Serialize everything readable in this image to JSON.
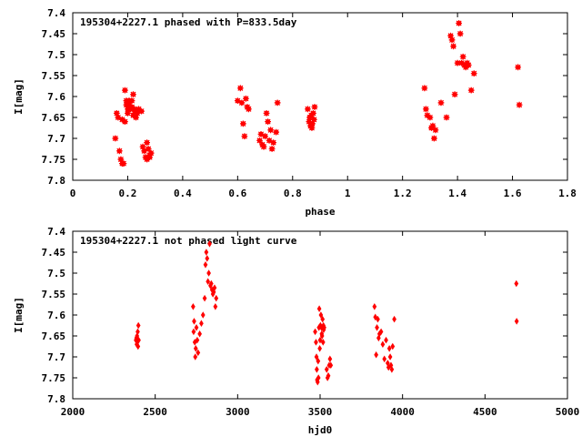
{
  "chart_data": [
    {
      "type": "scatter",
      "title": "195304+2227.1 phased with P=833.5day",
      "xlabel": "phase",
      "ylabel": "I[mag]",
      "xlim": [
        0,
        1.8
      ],
      "ylim": [
        7.8,
        7.4
      ],
      "y_inverted": true,
      "xticks": [
        "0",
        "0.2",
        "0.4",
        "0.6",
        "0.8",
        "1",
        "1.2",
        "1.4",
        "1.6",
        "1.8"
      ],
      "yticks": [
        "7.4",
        "7.45",
        "7.5",
        "7.55",
        "7.6",
        "7.65",
        "7.7",
        "7.75",
        "7.8"
      ],
      "grid": false,
      "marker_color": "#ff0000",
      "marker": "filled-circle-cross",
      "series": [
        {
          "x": [
            0.155,
            0.16,
            0.165,
            0.17,
            0.175,
            0.18,
            0.185,
            0.19,
            0.195,
            0.2,
            0.2,
            0.205,
            0.21,
            0.215,
            0.22,
            0.22,
            0.225,
            0.23,
            0.235,
            0.24,
            0.25,
            0.255,
            0.26,
            0.265,
            0.27,
            0.27,
            0.275,
            0.28,
            0.28,
            0.285,
            0.195,
            0.205,
            0.215,
            0.225,
            0.18,
            0.19,
            0.6,
            0.61,
            0.615,
            0.62,
            0.625,
            0.63,
            0.635,
            0.64,
            0.68,
            0.685,
            0.69,
            0.695,
            0.7,
            0.705,
            0.71,
            0.715,
            0.72,
            0.725,
            0.73,
            0.74,
            0.745,
            0.855,
            0.86,
            0.862,
            0.865,
            0.868,
            0.87,
            0.872,
            0.875,
            0.878,
            0.88,
            1.28,
            1.285,
            1.29,
            1.3,
            1.305,
            1.31,
            1.315,
            1.32,
            1.34,
            1.36,
            1.375,
            1.38,
            1.385,
            1.39,
            1.4,
            1.405,
            1.41,
            1.415,
            1.42,
            1.425,
            1.43,
            1.435,
            1.44,
            1.45,
            1.46,
            1.62,
            1.625
          ],
          "y": [
            7.7,
            7.64,
            7.65,
            7.73,
            7.75,
            7.76,
            7.76,
            7.585,
            7.61,
            7.63,
            7.64,
            7.62,
            7.63,
            7.61,
            7.595,
            7.645,
            7.63,
            7.65,
            7.64,
            7.63,
            7.635,
            7.72,
            7.73,
            7.745,
            7.75,
            7.71,
            7.725,
            7.74,
            7.745,
            7.735,
            7.62,
            7.61,
            7.625,
            7.635,
            7.655,
            7.66,
            7.61,
            7.58,
            7.615,
            7.665,
            7.695,
            7.605,
            7.625,
            7.63,
            7.705,
            7.69,
            7.715,
            7.72,
            7.695,
            7.64,
            7.66,
            7.705,
            7.68,
            7.725,
            7.71,
            7.685,
            7.615,
            7.63,
            7.66,
            7.65,
            7.67,
            7.645,
            7.675,
            7.665,
            7.64,
            7.655,
            7.625,
            7.58,
            7.63,
            7.645,
            7.65,
            7.675,
            7.67,
            7.7,
            7.68,
            7.615,
            7.65,
            7.455,
            7.465,
            7.48,
            7.595,
            7.52,
            7.425,
            7.45,
            7.52,
            7.505,
            7.525,
            7.53,
            7.52,
            7.525,
            7.585,
            7.545,
            7.53,
            7.62
          ]
        }
      ]
    },
    {
      "type": "scatter",
      "title": "195304+2227.1 not phased light curve",
      "xlabel": "hjd0",
      "ylabel": "I[mag]",
      "xlim": [
        2000,
        5000
      ],
      "ylim": [
        7.8,
        7.4
      ],
      "y_inverted": true,
      "xticks": [
        "2000",
        "2500",
        "3000",
        "3500",
        "4000",
        "4500",
        "5000"
      ],
      "yticks": [
        "7.4",
        "7.45",
        "7.5",
        "7.55",
        "7.6",
        "7.65",
        "7.7",
        "7.75",
        "7.8"
      ],
      "grid": false,
      "marker_color": "#ff0000",
      "marker": "diamond",
      "series": [
        {
          "x": [
            2383,
            2386,
            2388,
            2390,
            2392,
            2394,
            2396,
            2398,
            2400,
            2730,
            2733,
            2736,
            2740,
            2743,
            2746,
            2750,
            2755,
            2760,
            2770,
            2780,
            2790,
            2800,
            2805,
            2810,
            2815,
            2820,
            2825,
            2830,
            2835,
            2840,
            2845,
            2850,
            2855,
            2860,
            2865,
            2870,
            3470,
            3475,
            3478,
            3480,
            3482,
            3485,
            3488,
            3490,
            3493,
            3495,
            3498,
            3500,
            3502,
            3505,
            3508,
            3510,
            3512,
            3515,
            3518,
            3520,
            3522,
            3525,
            3540,
            3545,
            3550,
            3555,
            3560,
            3565,
            3830,
            3835,
            3840,
            3845,
            3850,
            3855,
            3860,
            3870,
            3880,
            3890,
            3900,
            3910,
            3915,
            3920,
            3925,
            3930,
            3935,
            3940,
            3950,
            4690,
            4692
          ],
          "y": [
            7.66,
            7.655,
            7.67,
            7.65,
            7.665,
            7.64,
            7.675,
            7.625,
            7.66,
            7.58,
            7.64,
            7.615,
            7.665,
            7.7,
            7.68,
            7.63,
            7.66,
            7.69,
            7.645,
            7.62,
            7.6,
            7.56,
            7.48,
            7.45,
            7.465,
            7.52,
            7.5,
            7.43,
            7.53,
            7.525,
            7.54,
            7.55,
            7.545,
            7.535,
            7.58,
            7.56,
            7.64,
            7.665,
            7.7,
            7.73,
            7.755,
            7.76,
            7.71,
            7.75,
            7.63,
            7.585,
            7.68,
            7.66,
            7.625,
            7.6,
            7.63,
            7.645,
            7.65,
            7.61,
            7.665,
            7.625,
            7.635,
            7.63,
            7.73,
            7.75,
            7.745,
            7.72,
            7.705,
            7.72,
            7.58,
            7.605,
            7.695,
            7.63,
            7.61,
            7.655,
            7.645,
            7.64,
            7.67,
            7.705,
            7.66,
            7.715,
            7.725,
            7.68,
            7.7,
            7.72,
            7.73,
            7.675,
            7.61,
            7.525,
            7.615
          ]
        }
      ]
    }
  ]
}
